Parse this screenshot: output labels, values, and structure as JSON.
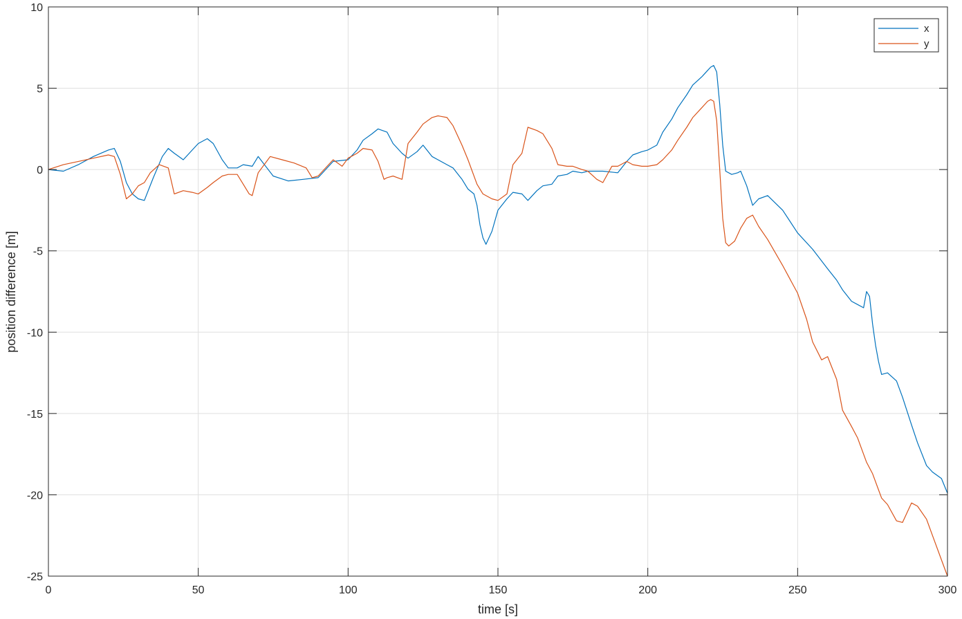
{
  "chart_data": {
    "type": "line",
    "xlabel": "time [s]",
    "ylabel": "position difference [m]",
    "xlim": [
      0,
      300
    ],
    "ylim": [
      -25,
      10
    ],
    "xticks": [
      0,
      50,
      100,
      150,
      200,
      250,
      300
    ],
    "yticks": [
      10,
      5,
      0,
      -5,
      -10,
      -15,
      -20,
      -25
    ],
    "xtick_labels": [
      "0",
      "50",
      "100",
      "150",
      "200",
      "250",
      "300"
    ],
    "ytick_labels": [
      "10",
      "5",
      "0",
      "-5",
      "-10",
      "-15",
      "-20",
      "-25"
    ],
    "grid": true,
    "legend_position": "top-right",
    "series": [
      {
        "name": "x",
        "color": "#0072BD",
        "x": [
          0,
          5,
          10,
          15,
          20,
          22,
          24,
          26,
          28,
          30,
          32,
          35,
          38,
          40,
          42,
          45,
          48,
          50,
          53,
          55,
          58,
          60,
          63,
          65,
          68,
          70,
          75,
          80,
          85,
          90,
          95,
          100,
          103,
          105,
          108,
          110,
          113,
          115,
          118,
          120,
          123,
          125,
          128,
          130,
          133,
          135,
          138,
          140,
          142,
          143,
          144,
          145,
          146,
          148,
          150,
          153,
          155,
          158,
          160,
          163,
          165,
          168,
          170,
          173,
          175,
          178,
          180,
          185,
          190,
          193,
          195,
          198,
          200,
          203,
          205,
          208,
          210,
          213,
          215,
          218,
          220,
          221,
          222,
          223,
          224,
          225,
          226,
          228,
          230,
          231,
          233,
          235,
          237,
          240,
          245,
          250,
          255,
          260,
          263,
          265,
          268,
          270,
          272,
          273,
          274,
          275,
          276,
          277,
          278,
          280,
          283,
          285,
          288,
          290,
          293,
          295,
          298,
          300
        ],
        "y": [
          0,
          -0.1,
          0.3,
          0.8,
          1.2,
          1.3,
          0.5,
          -0.8,
          -1.5,
          -1.8,
          -1.9,
          -0.5,
          0.8,
          1.3,
          1.0,
          0.6,
          1.2,
          1.6,
          1.9,
          1.6,
          0.6,
          0.1,
          0.1,
          0.3,
          0.2,
          0.8,
          -0.4,
          -0.7,
          -0.6,
          -0.5,
          0.5,
          0.6,
          1.2,
          1.8,
          2.2,
          2.5,
          2.3,
          1.6,
          1.0,
          0.7,
          1.1,
          1.5,
          0.8,
          0.6,
          0.3,
          0.1,
          -0.6,
          -1.2,
          -1.5,
          -2.2,
          -3.4,
          -4.2,
          -4.6,
          -3.8,
          -2.5,
          -1.8,
          -1.4,
          -1.5,
          -1.9,
          -1.3,
          -1.0,
          -0.9,
          -0.4,
          -0.3,
          -0.1,
          -0.2,
          -0.1,
          -0.1,
          -0.2,
          0.5,
          0.9,
          1.1,
          1.2,
          1.5,
          2.3,
          3.1,
          3.8,
          4.6,
          5.2,
          5.7,
          6.1,
          6.3,
          6.4,
          6.0,
          4.0,
          1.5,
          -0.1,
          -0.3,
          -0.2,
          -0.1,
          -1.0,
          -2.2,
          -1.8,
          -1.6,
          -2.5,
          -3.9,
          -4.9,
          -6.1,
          -6.8,
          -7.4,
          -8.1,
          -8.3,
          -8.5,
          -7.5,
          -7.8,
          -9.5,
          -10.8,
          -11.8,
          -12.6,
          -12.5,
          -13.0,
          -14.0,
          -15.7,
          -16.8,
          -18.2,
          -18.6,
          -19.0,
          -19.9
        ]
      },
      {
        "name": "y",
        "color": "#D95319",
        "x": [
          0,
          5,
          10,
          15,
          20,
          22,
          24,
          26,
          28,
          30,
          32,
          34,
          37,
          40,
          42,
          45,
          48,
          50,
          53,
          55,
          58,
          60,
          63,
          65,
          67,
          68,
          70,
          72,
          74,
          78,
          82,
          86,
          88,
          90,
          93,
          95,
          98,
          100,
          103,
          105,
          108,
          110,
          112,
          113,
          115,
          118,
          120,
          123,
          125,
          128,
          130,
          133,
          135,
          138,
          140,
          143,
          145,
          148,
          150,
          153,
          155,
          158,
          160,
          163,
          165,
          168,
          170,
          173,
          175,
          178,
          180,
          183,
          185,
          188,
          190,
          193,
          195,
          198,
          200,
          203,
          205,
          208,
          210,
          213,
          215,
          218,
          220,
          221,
          222,
          223,
          224,
          225,
          226,
          227,
          229,
          231,
          233,
          235,
          237,
          240,
          245,
          250,
          253,
          255,
          258,
          260,
          263,
          265,
          268,
          270,
          273,
          275,
          278,
          280,
          283,
          285,
          288,
          290,
          293,
          295,
          298,
          300
        ],
        "y": [
          0,
          0.3,
          0.5,
          0.7,
          0.9,
          0.8,
          -0.3,
          -1.8,
          -1.5,
          -1.0,
          -0.8,
          -0.2,
          0.3,
          0.1,
          -1.5,
          -1.3,
          -1.4,
          -1.5,
          -1.1,
          -0.8,
          -0.4,
          -0.3,
          -0.3,
          -0.9,
          -1.5,
          -1.6,
          -0.2,
          0.3,
          0.8,
          0.6,
          0.4,
          0.1,
          -0.5,
          -0.4,
          0.2,
          0.6,
          0.2,
          0.7,
          1.0,
          1.3,
          1.2,
          0.5,
          -0.6,
          -0.5,
          -0.4,
          -0.6,
          1.6,
          2.3,
          2.8,
          3.2,
          3.3,
          3.2,
          2.7,
          1.5,
          0.6,
          -0.9,
          -1.5,
          -1.8,
          -1.9,
          -1.5,
          0.3,
          1.0,
          2.6,
          2.4,
          2.2,
          1.3,
          0.3,
          0.2,
          0.2,
          0.0,
          -0.1,
          -0.6,
          -0.8,
          0.2,
          0.2,
          0.5,
          0.3,
          0.2,
          0.2,
          0.3,
          0.6,
          1.2,
          1.8,
          2.6,
          3.2,
          3.8,
          4.2,
          4.3,
          4.2,
          3.0,
          0.0,
          -3.0,
          -4.5,
          -4.7,
          -4.4,
          -3.6,
          -3.0,
          -2.8,
          -3.5,
          -4.3,
          -5.9,
          -7.6,
          -9.2,
          -10.6,
          -11.7,
          -11.5,
          -12.9,
          -14.8,
          -15.8,
          -16.5,
          -18.0,
          -18.7,
          -20.2,
          -20.6,
          -21.6,
          -21.7,
          -20.5,
          -20.7,
          -21.5,
          -22.5,
          -24.0,
          -25.0
        ]
      }
    ]
  }
}
